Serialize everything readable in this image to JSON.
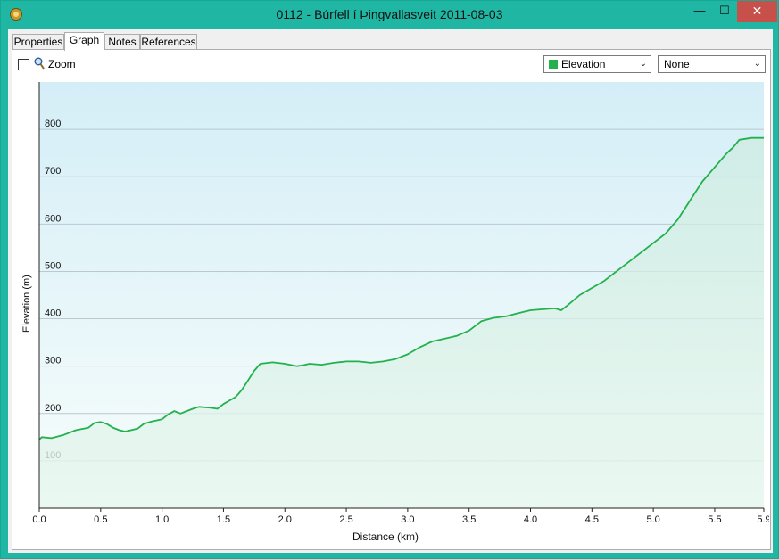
{
  "window": {
    "title": "0112 - Búrfell í Þingvallasveit 2011-08-03",
    "minimize_label": "—",
    "maximize_label": "☐",
    "close_label": "✕"
  },
  "tabs": [
    {
      "label": "Properties"
    },
    {
      "label": "Graph"
    },
    {
      "label": "Notes"
    },
    {
      "label": "References"
    }
  ],
  "toolbar": {
    "zoom_label": "Zoom",
    "zoom_checked": false,
    "primary_select": "Elevation",
    "secondary_select": "None",
    "series_color": "#22b14c"
  },
  "chart_data": {
    "type": "area",
    "title": "",
    "xlabel": "Distance  (km)",
    "ylabel": "Elevation (m)",
    "xlim": [
      0,
      5.9
    ],
    "ylim": [
      0,
      900
    ],
    "x_ticks": [
      "0.0",
      "0.5",
      "1.0",
      "1.5",
      "2.0",
      "2.5",
      "3.0",
      "3.5",
      "4.0",
      "4.5",
      "5.0",
      "5.5",
      "5.9"
    ],
    "y_ticks": [
      "100",
      "200",
      "300",
      "400",
      "500",
      "600",
      "700",
      "800"
    ],
    "grid": true,
    "series": [
      {
        "color": "#22b14c",
        "x": [
          0.0,
          0.02,
          0.1,
          0.2,
          0.3,
          0.4,
          0.45,
          0.5,
          0.55,
          0.6,
          0.65,
          0.7,
          0.8,
          0.85,
          0.9,
          1.0,
          1.05,
          1.1,
          1.15,
          1.2,
          1.25,
          1.3,
          1.4,
          1.45,
          1.5,
          1.6,
          1.65,
          1.7,
          1.75,
          1.8,
          1.9,
          2.0,
          2.1,
          2.15,
          2.2,
          2.3,
          2.4,
          2.5,
          2.6,
          2.7,
          2.8,
          2.9,
          3.0,
          3.1,
          3.2,
          3.3,
          3.4,
          3.5,
          3.6,
          3.7,
          3.8,
          3.9,
          4.0,
          4.1,
          4.2,
          4.25,
          4.3,
          4.4,
          4.5,
          4.6,
          4.7,
          4.8,
          4.9,
          5.0,
          5.1,
          5.2,
          5.3,
          5.4,
          5.5,
          5.6,
          5.65,
          5.7,
          5.8,
          5.9
        ],
        "y": [
          145,
          150,
          148,
          155,
          165,
          170,
          180,
          182,
          178,
          170,
          165,
          162,
          168,
          178,
          182,
          188,
          198,
          205,
          200,
          205,
          210,
          214,
          212,
          210,
          220,
          235,
          250,
          270,
          290,
          305,
          308,
          305,
          300,
          302,
          305,
          303,
          307,
          310,
          310,
          307,
          310,
          315,
          325,
          340,
          352,
          358,
          364,
          375,
          395,
          402,
          405,
          412,
          418,
          420,
          422,
          418,
          428,
          450,
          465,
          480,
          500,
          520,
          540,
          560,
          580,
          610,
          650,
          690,
          720,
          750,
          762,
          778,
          782,
          782
        ]
      }
    ]
  }
}
